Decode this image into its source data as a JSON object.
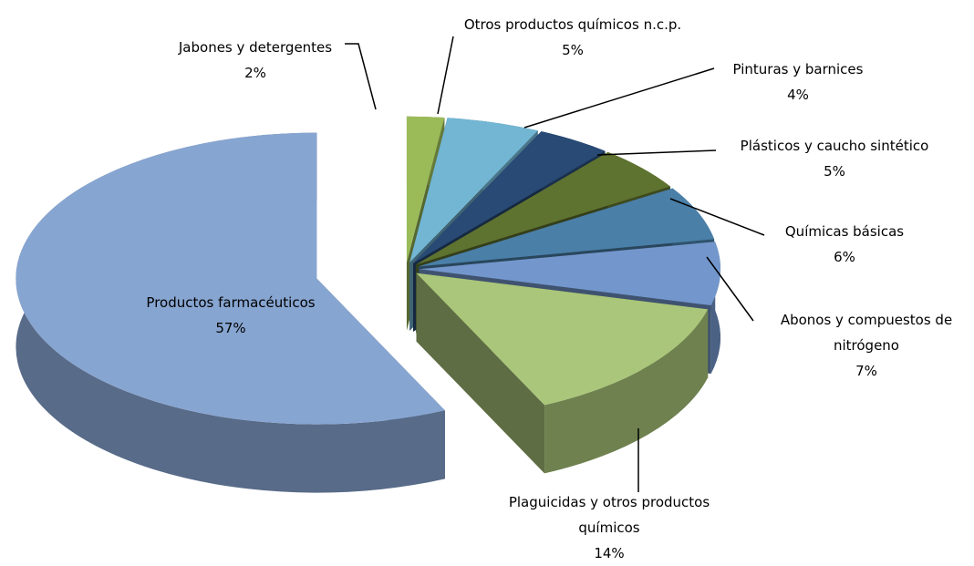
{
  "chart_data": {
    "type": "pie",
    "categories": [
      "Jabones y detergentes",
      "Otros productos químicos n.c.p.",
      "Pinturas y barnices",
      "Plásticos y caucho sintético",
      "Químicas básicas",
      "Abonos y compuestos de nitrógeno",
      "Plaguicidas y otros productos químicos",
      "Productos farmacéuticos"
    ],
    "values": [
      2,
      5,
      4,
      5,
      6,
      7,
      14,
      57
    ],
    "value_labels": [
      "2%",
      "5%",
      "4%",
      "5%",
      "6%",
      "7%",
      "14%",
      "57%"
    ],
    "colors": [
      "#9bbb59",
      "#72b6d4",
      "#284a75",
      "#5f7330",
      "#4a7fa8",
      "#7397cc",
      "#aac67a",
      "#87a5d1"
    ]
  }
}
